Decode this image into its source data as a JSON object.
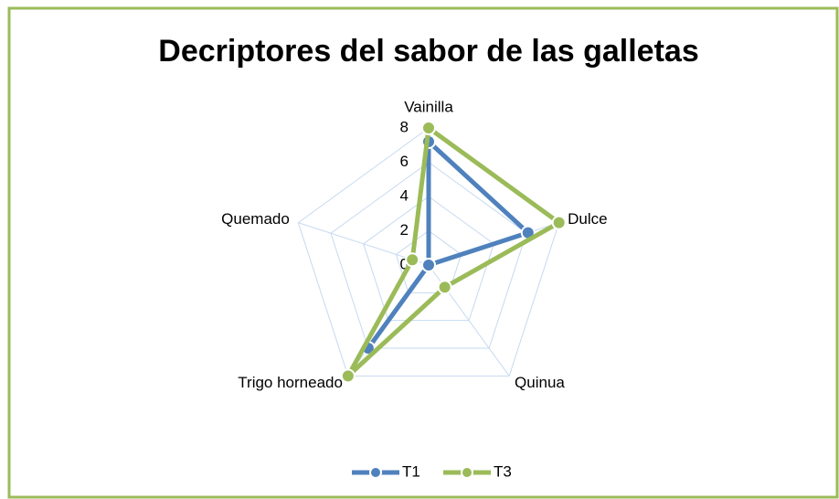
{
  "chart_data": {
    "type": "radar",
    "title": "Decriptores del sabor de las galletas",
    "categories": [
      "Vainilla",
      "Dulce",
      "Quinua",
      "Trigo horneado",
      "Quemado"
    ],
    "series": [
      {
        "name": "T1",
        "color": "#4f81bd",
        "values": [
          7.2,
          6.1,
          0,
          6,
          0
        ]
      },
      {
        "name": "T3",
        "color": "#9bbb59",
        "values": [
          8,
          8,
          1.6,
          8,
          1
        ]
      }
    ],
    "rlim": [
      0,
      8
    ],
    "rticks": [
      0,
      2,
      4,
      6,
      8
    ],
    "grid": true,
    "legend": "bottom"
  }
}
